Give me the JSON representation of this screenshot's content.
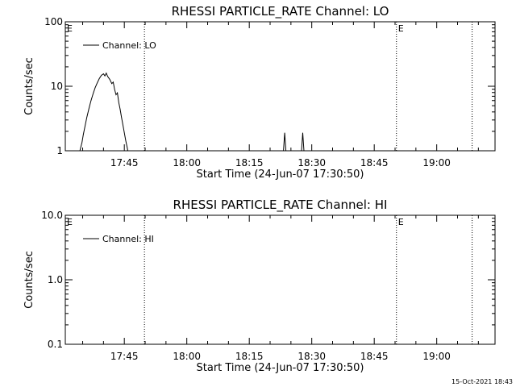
{
  "footer_timestamp": "15-Oct-2021 18:43",
  "chart_data": [
    {
      "type": "line",
      "title": "RHESSI PARTICLE_RATE Channel: LO",
      "xlabel": "Start Time (24-Jun-07 17:30:50)",
      "ylabel": "Counts/sec",
      "y_scale": "log",
      "ylim": [
        1,
        100
      ],
      "y_ticks": [
        {
          "value": 1,
          "label": "1"
        },
        {
          "value": 10,
          "label": "10"
        },
        {
          "value": 100,
          "label": "100"
        }
      ],
      "xlim": [
        "17:30:50",
        "19:14:00"
      ],
      "x_ticks": [
        "17:45",
        "18:00",
        "18:15",
        "18:30",
        "18:45",
        "19:00"
      ],
      "legend": {
        "placement": "top-left",
        "entries": [
          "Channel: LO"
        ]
      },
      "markers": [
        {
          "time": "17:49:50",
          "label": ""
        },
        {
          "time": "18:50:20",
          "label": "E"
        },
        {
          "time": "19:08:30",
          "label": ""
        }
      ],
      "edge_marker_label": "E",
      "series": [
        {
          "name": "Channel: LO",
          "points": [
            [
              "17:34:20",
              1.0
            ],
            [
              "17:34:50",
              1.35
            ],
            [
              "17:35:10",
              1.8
            ],
            [
              "17:35:40",
              2.6
            ],
            [
              "17:36:00",
              3.3
            ],
            [
              "17:36:30",
              4.5
            ],
            [
              "17:37:00",
              6.0
            ],
            [
              "17:37:30",
              7.6
            ],
            [
              "17:38:00",
              9.5
            ],
            [
              "17:38:30",
              11.3
            ],
            [
              "17:39:00",
              13.2
            ],
            [
              "17:39:30",
              14.8
            ],
            [
              "17:40:00",
              15.6
            ],
            [
              "17:40:20",
              14.5
            ],
            [
              "17:40:40",
              16.0
            ],
            [
              "17:41:00",
              14.2
            ],
            [
              "17:41:30",
              12.8
            ],
            [
              "17:42:00",
              11.0
            ],
            [
              "17:42:20",
              11.6
            ],
            [
              "17:42:40",
              9.0
            ],
            [
              "17:43:00",
              7.4
            ],
            [
              "17:43:20",
              7.9
            ],
            [
              "17:43:40",
              5.6
            ],
            [
              "17:44:00",
              4.4
            ],
            [
              "17:44:20",
              3.3
            ],
            [
              "17:44:40",
              2.5
            ],
            [
              "17:45:00",
              1.9
            ],
            [
              "17:45:20",
              1.45
            ],
            [
              "17:45:40",
              1.15
            ],
            [
              "17:45:50",
              1.0
            ]
          ],
          "spikes": [
            {
              "time": "18:23:30",
              "value": 1.9
            },
            {
              "time": "18:27:50",
              "value": 1.9
            }
          ]
        }
      ]
    },
    {
      "type": "line",
      "title": "RHESSI PARTICLE_RATE Channel: HI",
      "xlabel": "Start Time (24-Jun-07 17:30:50)",
      "ylabel": "Counts/sec",
      "y_scale": "log",
      "ylim": [
        0.1,
        10
      ],
      "y_ticks": [
        {
          "value": 0.1,
          "label": "0.1"
        },
        {
          "value": 1,
          "label": "1.0"
        },
        {
          "value": 10,
          "label": "10.0"
        }
      ],
      "xlim": [
        "17:30:50",
        "19:14:00"
      ],
      "x_ticks": [
        "17:45",
        "18:00",
        "18:15",
        "18:30",
        "18:45",
        "19:00"
      ],
      "legend": {
        "placement": "top-left",
        "entries": [
          "Channel: HI"
        ]
      },
      "markers": [
        {
          "time": "17:49:50",
          "label": ""
        },
        {
          "time": "18:50:20",
          "label": "E"
        },
        {
          "time": "19:08:30",
          "label": ""
        }
      ],
      "edge_marker_label": "E",
      "series": [
        {
          "name": "Channel: HI",
          "points": [],
          "spikes": []
        }
      ]
    }
  ]
}
